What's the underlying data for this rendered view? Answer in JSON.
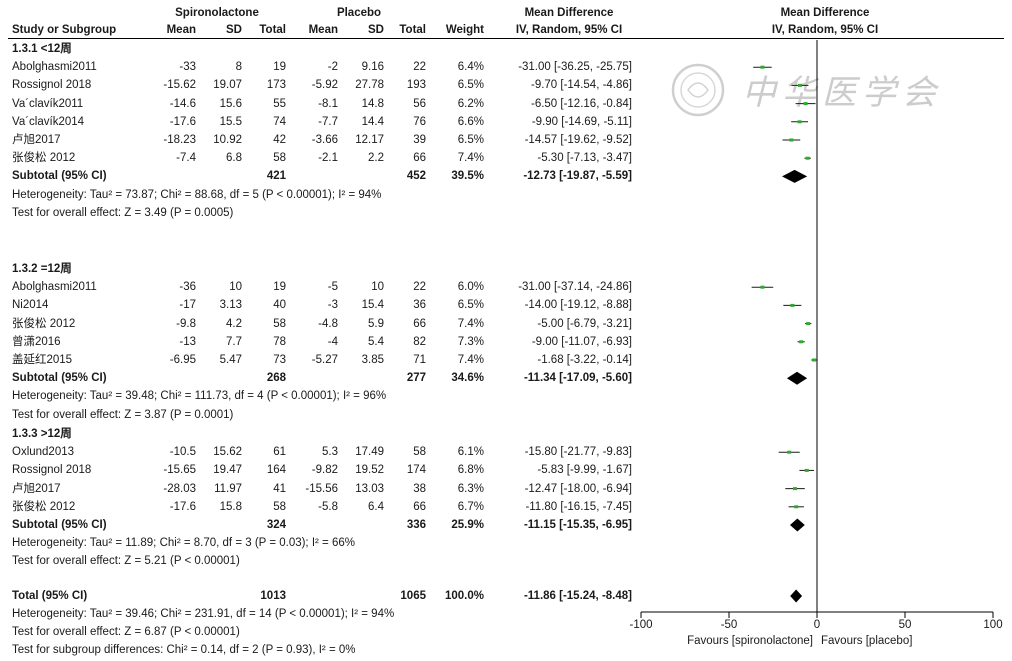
{
  "header": {
    "group_exp": "Spironolactone",
    "group_ctrl": "Placebo",
    "table_effect_title": "Mean Difference",
    "table_effect_sub": "IV, Random, 95% CI",
    "plot_effect_title": "Mean Difference",
    "plot_effect_sub": "IV, Random, 95% CI",
    "col_study": "Study or Subgroup",
    "col_mean_exp": "Mean",
    "col_sd_exp": "SD",
    "col_total_exp": "Total",
    "col_mean_ctrl": "Mean",
    "col_sd_ctrl": "SD",
    "col_total_ctrl": "Total",
    "col_weight": "Weight"
  },
  "watermark": {
    "text": "中华医学会"
  },
  "chart_data": {
    "type": "forest",
    "axis": {
      "xlim": [
        -100,
        100
      ],
      "ticks": [
        -100,
        -50,
        0,
        50,
        100
      ],
      "tick_labels": [
        "-100",
        "-50",
        "0",
        "50",
        "100"
      ]
    },
    "favours_left": "Favours [spironolactone]",
    "favours_right": "Favours [placebo]",
    "subgroups": [
      {
        "label": "1.3.1 <12周",
        "studies": [
          {
            "name": "Abolghasmi2011",
            "mean_e": "-33",
            "sd_e": "8",
            "n_e": "19",
            "mean_c": "-2",
            "sd_c": "9.16",
            "n_c": "22",
            "weight": "6.4%",
            "ci_text": "-31.00 [-36.25, -25.75]",
            "md": -31.0,
            "lo": -36.25,
            "hi": -25.75
          },
          {
            "name": "Rossignol 2018",
            "mean_e": "-15.62",
            "sd_e": "19.07",
            "n_e": "173",
            "mean_c": "-5.92",
            "sd_c": "27.78",
            "n_c": "193",
            "weight": "6.5%",
            "ci_text": "-9.70 [-14.54, -4.86]",
            "md": -9.7,
            "lo": -14.54,
            "hi": -4.86
          },
          {
            "name": "Va´clavík2011",
            "mean_e": "-14.6",
            "sd_e": "15.6",
            "n_e": "55",
            "mean_c": "-8.1",
            "sd_c": "14.8",
            "n_c": "56",
            "weight": "6.2%",
            "ci_text": "-6.50 [-12.16, -0.84]",
            "md": -6.5,
            "lo": -12.16,
            "hi": -0.84
          },
          {
            "name": "Va´clavík2014",
            "mean_e": "-17.6",
            "sd_e": "15.5",
            "n_e": "74",
            "mean_c": "-7.7",
            "sd_c": "14.4",
            "n_c": "76",
            "weight": "6.6%",
            "ci_text": "-9.90 [-14.69, -5.11]",
            "md": -9.9,
            "lo": -14.69,
            "hi": -5.11
          },
          {
            "name": "卢旭2017",
            "mean_e": "-18.23",
            "sd_e": "10.92",
            "n_e": "42",
            "mean_c": "-3.66",
            "sd_c": "12.17",
            "n_c": "39",
            "weight": "6.5%",
            "ci_text": "-14.57 [-19.62, -9.52]",
            "md": -14.57,
            "lo": -19.62,
            "hi": -9.52
          },
          {
            "name": "张俊松 2012",
            "mean_e": "-7.4",
            "sd_e": "6.8",
            "n_e": "58",
            "mean_c": "-2.1",
            "sd_c": "2.2",
            "n_c": "66",
            "weight": "7.4%",
            "ci_text": "-5.30 [-7.13, -3.47]",
            "md": -5.3,
            "lo": -7.13,
            "hi": -3.47
          }
        ],
        "subtotal": {
          "label": "Subtotal (95% CI)",
          "n_e": "421",
          "n_c": "452",
          "weight": "39.5%",
          "ci_text": "-12.73 [-19.87, -5.59]",
          "md": -12.73,
          "lo": -19.87,
          "hi": -5.59
        },
        "heterogeneity": "Heterogeneity: Tau² = 73.87; Chi² = 88.68, df = 5 (P < 0.00001); I² = 94%",
        "overall": "Test for overall effect: Z = 3.49 (P = 0.0005)"
      },
      {
        "label": "1.3.2 =12周",
        "studies": [
          {
            "name": "Abolghasmi2011",
            "mean_e": "-36",
            "sd_e": "10",
            "n_e": "19",
            "mean_c": "-5",
            "sd_c": "10",
            "n_c": "22",
            "weight": "6.0%",
            "ci_text": "-31.00 [-37.14, -24.86]",
            "md": -31.0,
            "lo": -37.14,
            "hi": -24.86
          },
          {
            "name": "Ni2014",
            "mean_e": "-17",
            "sd_e": "3.13",
            "n_e": "40",
            "mean_c": "-3",
            "sd_c": "15.4",
            "n_c": "36",
            "weight": "6.5%",
            "ci_text": "-14.00 [-19.12, -8.88]",
            "md": -14.0,
            "lo": -19.12,
            "hi": -8.88
          },
          {
            "name": "张俊松 2012",
            "mean_e": "-9.8",
            "sd_e": "4.2",
            "n_e": "58",
            "mean_c": "-4.8",
            "sd_c": "5.9",
            "n_c": "66",
            "weight": "7.4%",
            "ci_text": "-5.00 [-6.79, -3.21]",
            "md": -5.0,
            "lo": -6.79,
            "hi": -3.21
          },
          {
            "name": "曾潇2016",
            "mean_e": "-13",
            "sd_e": "7.7",
            "n_e": "78",
            "mean_c": "-4",
            "sd_c": "5.4",
            "n_c": "82",
            "weight": "7.3%",
            "ci_text": "-9.00 [-11.07, -6.93]",
            "md": -9.0,
            "lo": -11.07,
            "hi": -6.93
          },
          {
            "name": "盖延红2015",
            "mean_e": "-6.95",
            "sd_e": "5.47",
            "n_e": "73",
            "mean_c": "-5.27",
            "sd_c": "3.85",
            "n_c": "71",
            "weight": "7.4%",
            "ci_text": "-1.68 [-3.22, -0.14]",
            "md": -1.68,
            "lo": -3.22,
            "hi": -0.14
          }
        ],
        "subtotal": {
          "label": "Subtotal (95% CI)",
          "n_e": "268",
          "n_c": "277",
          "weight": "34.6%",
          "ci_text": "-11.34 [-17.09, -5.60]",
          "md": -11.34,
          "lo": -17.09,
          "hi": -5.6
        },
        "heterogeneity": "Heterogeneity: Tau² = 39.48; Chi² = 111.73, df = 4 (P < 0.00001); I² = 96%",
        "overall": "Test for overall effect: Z = 3.87 (P = 0.0001)"
      },
      {
        "label": "1.3.3 >12周",
        "studies": [
          {
            "name": "Oxlund2013",
            "mean_e": "-10.5",
            "sd_e": "15.62",
            "n_e": "61",
            "mean_c": "5.3",
            "sd_c": "17.49",
            "n_c": "58",
            "weight": "6.1%",
            "ci_text": "-15.80 [-21.77, -9.83]",
            "md": -15.8,
            "lo": -21.77,
            "hi": -9.83
          },
          {
            "name": "Rossignol 2018",
            "mean_e": "-15.65",
            "sd_e": "19.47",
            "n_e": "164",
            "mean_c": "-9.82",
            "sd_c": "19.52",
            "n_c": "174",
            "weight": "6.8%",
            "ci_text": "-5.83 [-9.99, -1.67]",
            "md": -5.83,
            "lo": -9.99,
            "hi": -1.67
          },
          {
            "name": "卢旭2017",
            "mean_e": "-28.03",
            "sd_e": "11.97",
            "n_e": "41",
            "mean_c": "-15.56",
            "sd_c": "13.03",
            "n_c": "38",
            "weight": "6.3%",
            "ci_text": "-12.47 [-18.00, -6.94]",
            "md": -12.47,
            "lo": -18.0,
            "hi": -6.94
          },
          {
            "name": "张俊松 2012",
            "mean_e": "-17.6",
            "sd_e": "15.8",
            "n_e": "58",
            "mean_c": "-5.8",
            "sd_c": "6.4",
            "n_c": "66",
            "weight": "6.7%",
            "ci_text": "-11.80 [-16.15, -7.45]",
            "md": -11.8,
            "lo": -16.15,
            "hi": -7.45
          }
        ],
        "subtotal": {
          "label": "Subtotal (95% CI)",
          "n_e": "324",
          "n_c": "336",
          "weight": "25.9%",
          "ci_text": "-11.15 [-15.35, -6.95]",
          "md": -11.15,
          "lo": -15.35,
          "hi": -6.95
        },
        "heterogeneity": "Heterogeneity: Tau² = 11.89; Chi² = 8.70, df = 3 (P = 0.03); I² = 66%",
        "overall": "Test for overall effect: Z = 5.21 (P < 0.00001)"
      }
    ],
    "total": {
      "label": "Total (95% CI)",
      "n_e": "1013",
      "n_c": "1065",
      "weight": "100.0%",
      "ci_text": "-11.86 [-15.24, -8.48]",
      "md": -11.86,
      "lo": -15.24,
      "hi": -8.48,
      "heterogeneity": "Heterogeneity: Tau² = 39.46; Chi² = 231.91, df = 14 (P < 0.00001); I² = 94%",
      "overall": "Test for overall effect: Z = 6.87 (P < 0.00001)",
      "subgroup_diff": "Test for subgroup differences: Chi² = 0.14, df = 2 (P = 0.93), I² = 0%"
    }
  },
  "colors": {
    "text": "#1a1a1a",
    "ci_line": "#1a1a1a",
    "point": "#2eaa2e",
    "diamond": "#000000",
    "rule": "#000000",
    "watermark": "#c8c8c8"
  }
}
